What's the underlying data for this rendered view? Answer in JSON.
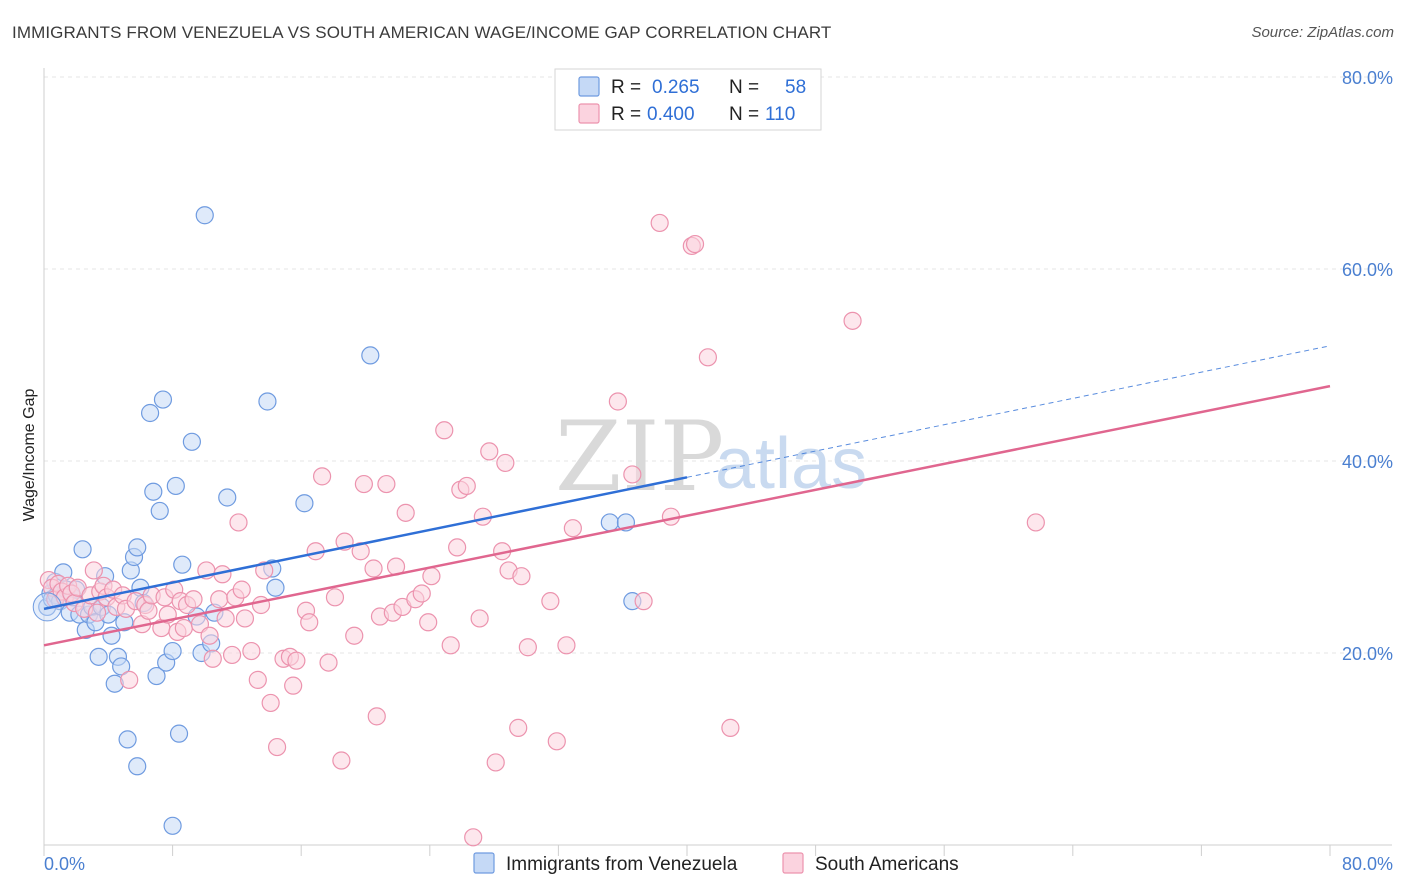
{
  "header": {
    "title": "IMMIGRANTS FROM VENEZUELA VS SOUTH AMERICAN WAGE/INCOME GAP CORRELATION CHART",
    "source": "Source: ZipAtlas.com"
  },
  "watermark": {
    "zip": "ZIP",
    "atlas": "atlas"
  },
  "legend": {
    "r_label": "R =",
    "n_label": "N =",
    "rows": [
      {
        "r": "0.265",
        "n": "58",
        "fill": "#c5d9f6",
        "stroke": "#6f9be0"
      },
      {
        "r": "0.400",
        "n": "110",
        "fill": "#fbd3df",
        "stroke": "#ec93ae"
      }
    ]
  },
  "bottom_legend": [
    {
      "label": "Immigrants from Venezuela",
      "fill": "#c5d9f6",
      "stroke": "#6f9be0"
    },
    {
      "label": "South Americans",
      "fill": "#fbd3df",
      "stroke": "#ec93ae"
    }
  ],
  "chart_data": {
    "type": "scatter",
    "xlabel": "",
    "ylabel": "Wage/Income Gap",
    "xlim": [
      0,
      80
    ],
    "ylim": [
      0,
      80
    ],
    "x_tick_labels": [
      "0.0%",
      "80.0%"
    ],
    "y_ticks": [
      {
        "value": 20,
        "label": "20.0%"
      },
      {
        "value": 40,
        "label": "40.0%"
      },
      {
        "value": 60,
        "label": "60.0%"
      },
      {
        "value": 80,
        "label": "80.0%"
      }
    ],
    "grid": true,
    "series": [
      {
        "name": "Immigrants from Venezuela",
        "color": "#6f9be0",
        "fill": "#c5d9f6",
        "trend": {
          "x0": 0,
          "y0": 24.6,
          "x1": 40,
          "y1": 38.3,
          "dash_to_x": 80,
          "dash_to_y": 52.0,
          "color": "#2f6fd6"
        },
        "points": [
          [
            0.2,
            24.8
          ],
          [
            0.4,
            26.2
          ],
          [
            0.5,
            25.6
          ],
          [
            0.7,
            27.4
          ],
          [
            0.8,
            26.0
          ],
          [
            1.0,
            25.4
          ],
          [
            1.2,
            28.4
          ],
          [
            1.4,
            26.6
          ],
          [
            1.6,
            24.2
          ],
          [
            1.8,
            25.8
          ],
          [
            2.0,
            26.6
          ],
          [
            2.2,
            24.0
          ],
          [
            2.4,
            30.8
          ],
          [
            2.6,
            22.4
          ],
          [
            2.8,
            24.0
          ],
          [
            3.0,
            24.8
          ],
          [
            3.2,
            23.2
          ],
          [
            3.4,
            19.6
          ],
          [
            3.6,
            24.8
          ],
          [
            3.8,
            28.0
          ],
          [
            4.0,
            24.0
          ],
          [
            4.2,
            21.8
          ],
          [
            4.4,
            16.8
          ],
          [
            4.6,
            19.6
          ],
          [
            4.8,
            18.6
          ],
          [
            5.0,
            23.2
          ],
          [
            5.2,
            11.0
          ],
          [
            5.4,
            28.6
          ],
          [
            5.6,
            30.0
          ],
          [
            5.8,
            31.0
          ],
          [
            6.0,
            26.8
          ],
          [
            6.2,
            25.2
          ],
          [
            6.6,
            45.0
          ],
          [
            6.8,
            36.8
          ],
          [
            7.0,
            17.6
          ],
          [
            7.2,
            34.8
          ],
          [
            7.4,
            46.4
          ],
          [
            7.6,
            19.0
          ],
          [
            8.0,
            20.2
          ],
          [
            8.2,
            37.4
          ],
          [
            8.4,
            11.6
          ],
          [
            8.6,
            29.2
          ],
          [
            9.2,
            42.0
          ],
          [
            9.5,
            23.8
          ],
          [
            9.8,
            20.0
          ],
          [
            10.0,
            65.6
          ],
          [
            10.4,
            21.0
          ],
          [
            10.6,
            24.2
          ],
          [
            11.4,
            36.2
          ],
          [
            13.9,
            46.2
          ],
          [
            14.2,
            28.8
          ],
          [
            14.4,
            26.8
          ],
          [
            16.2,
            35.6
          ],
          [
            20.3,
            51.0
          ],
          [
            35.2,
            33.6
          ],
          [
            36.2,
            33.6
          ],
          [
            36.6,
            25.4
          ],
          [
            5.8,
            8.2
          ],
          [
            8.0,
            2.0
          ]
        ]
      },
      {
        "name": "South Americans",
        "color": "#ec93ae",
        "fill": "#fbd3df",
        "trend": {
          "x0": 0,
          "y0": 20.8,
          "x1": 80,
          "y1": 47.8,
          "color": "#e0668f"
        },
        "points": [
          [
            0.3,
            27.6
          ],
          [
            0.5,
            26.8
          ],
          [
            0.7,
            25.6
          ],
          [
            0.9,
            27.2
          ],
          [
            1.1,
            26.4
          ],
          [
            1.3,
            25.8
          ],
          [
            1.5,
            27.0
          ],
          [
            1.7,
            26.2
          ],
          [
            1.9,
            25.2
          ],
          [
            2.1,
            26.8
          ],
          [
            2.5,
            24.6
          ],
          [
            2.9,
            26.0
          ],
          [
            3.1,
            28.6
          ],
          [
            3.3,
            24.2
          ],
          [
            3.5,
            26.4
          ],
          [
            3.7,
            27.0
          ],
          [
            3.9,
            25.8
          ],
          [
            4.3,
            26.6
          ],
          [
            4.5,
            24.8
          ],
          [
            4.9,
            26.0
          ],
          [
            5.1,
            24.6
          ],
          [
            5.3,
            17.2
          ],
          [
            5.7,
            25.4
          ],
          [
            6.1,
            23.0
          ],
          [
            6.3,
            25.0
          ],
          [
            6.5,
            24.4
          ],
          [
            6.7,
            26.0
          ],
          [
            7.3,
            22.6
          ],
          [
            7.5,
            25.8
          ],
          [
            7.7,
            24.0
          ],
          [
            8.1,
            26.6
          ],
          [
            8.3,
            22.2
          ],
          [
            8.5,
            25.4
          ],
          [
            8.7,
            22.6
          ],
          [
            8.9,
            25.0
          ],
          [
            9.3,
            25.6
          ],
          [
            9.7,
            23.0
          ],
          [
            10.1,
            28.6
          ],
          [
            10.3,
            21.8
          ],
          [
            10.5,
            19.4
          ],
          [
            10.9,
            25.6
          ],
          [
            11.1,
            28.2
          ],
          [
            11.3,
            23.6
          ],
          [
            11.7,
            19.8
          ],
          [
            11.9,
            25.8
          ],
          [
            12.1,
            33.6
          ],
          [
            12.3,
            26.6
          ],
          [
            12.5,
            23.6
          ],
          [
            12.9,
            20.2
          ],
          [
            13.3,
            17.2
          ],
          [
            13.5,
            25.0
          ],
          [
            13.7,
            28.6
          ],
          [
            14.1,
            14.8
          ],
          [
            14.5,
            10.2
          ],
          [
            14.9,
            19.4
          ],
          [
            15.3,
            19.6
          ],
          [
            15.5,
            16.6
          ],
          [
            15.7,
            19.2
          ],
          [
            16.3,
            24.4
          ],
          [
            16.5,
            23.2
          ],
          [
            16.9,
            30.6
          ],
          [
            17.3,
            38.4
          ],
          [
            17.7,
            19.0
          ],
          [
            18.1,
            25.8
          ],
          [
            18.5,
            8.8
          ],
          [
            18.7,
            31.6
          ],
          [
            19.3,
            21.8
          ],
          [
            19.7,
            30.6
          ],
          [
            19.9,
            37.6
          ],
          [
            20.5,
            28.8
          ],
          [
            20.7,
            13.4
          ],
          [
            20.9,
            23.8
          ],
          [
            21.3,
            37.6
          ],
          [
            21.7,
            24.2
          ],
          [
            21.9,
            29.0
          ],
          [
            22.3,
            24.8
          ],
          [
            22.5,
            34.6
          ],
          [
            23.1,
            25.6
          ],
          [
            23.5,
            26.2
          ],
          [
            23.9,
            23.2
          ],
          [
            24.1,
            28.0
          ],
          [
            24.9,
            43.2
          ],
          [
            25.3,
            20.8
          ],
          [
            25.7,
            31.0
          ],
          [
            25.9,
            37.0
          ],
          [
            26.3,
            37.4
          ],
          [
            26.7,
            0.8
          ],
          [
            27.1,
            23.6
          ],
          [
            27.3,
            34.2
          ],
          [
            27.7,
            41.0
          ],
          [
            28.1,
            8.6
          ],
          [
            28.5,
            30.6
          ],
          [
            28.7,
            39.8
          ],
          [
            28.9,
            28.6
          ],
          [
            29.5,
            12.2
          ],
          [
            29.7,
            28.0
          ],
          [
            30.1,
            20.6
          ],
          [
            31.5,
            25.4
          ],
          [
            31.9,
            10.8
          ],
          [
            32.5,
            20.8
          ],
          [
            32.9,
            33.0
          ],
          [
            35.7,
            46.2
          ],
          [
            36.6,
            38.6
          ],
          [
            37.3,
            25.4
          ],
          [
            38.3,
            64.8
          ],
          [
            39.0,
            34.2
          ],
          [
            40.3,
            62.4
          ],
          [
            40.5,
            62.6
          ],
          [
            41.3,
            50.8
          ],
          [
            42.7,
            12.2
          ],
          [
            50.3,
            54.6
          ],
          [
            61.7,
            33.6
          ]
        ]
      }
    ]
  }
}
